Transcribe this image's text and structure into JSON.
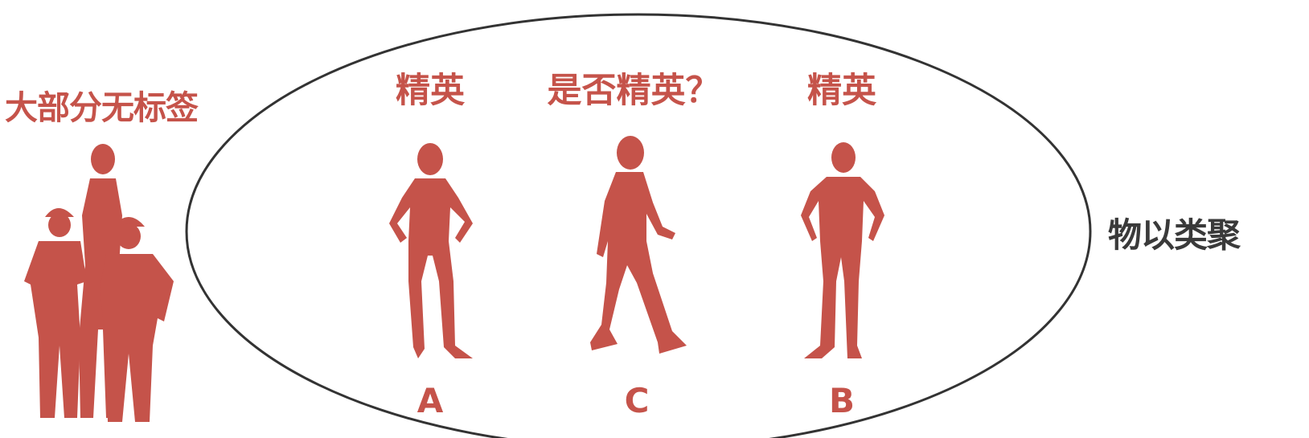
{
  "colors": {
    "accent": "#c5534a",
    "dark_text": "#3a3a3a",
    "ellipse_stroke": "#333333",
    "background": "#ffffff"
  },
  "labels": {
    "left_title": "大部分无标签",
    "right_title": "物以类聚",
    "person_a_title": "精英",
    "person_c_title": "是否精英？",
    "person_b_title": "精英",
    "letter_a": "A",
    "letter_c": "C",
    "letter_b": "B"
  },
  "icons": {
    "group": "workers-group-silhouette-icon",
    "person_a": "standing-woman-silhouette-icon",
    "person_c": "walking-man-silhouette-icon",
    "person_b": "standing-man-silhouette-icon"
  }
}
